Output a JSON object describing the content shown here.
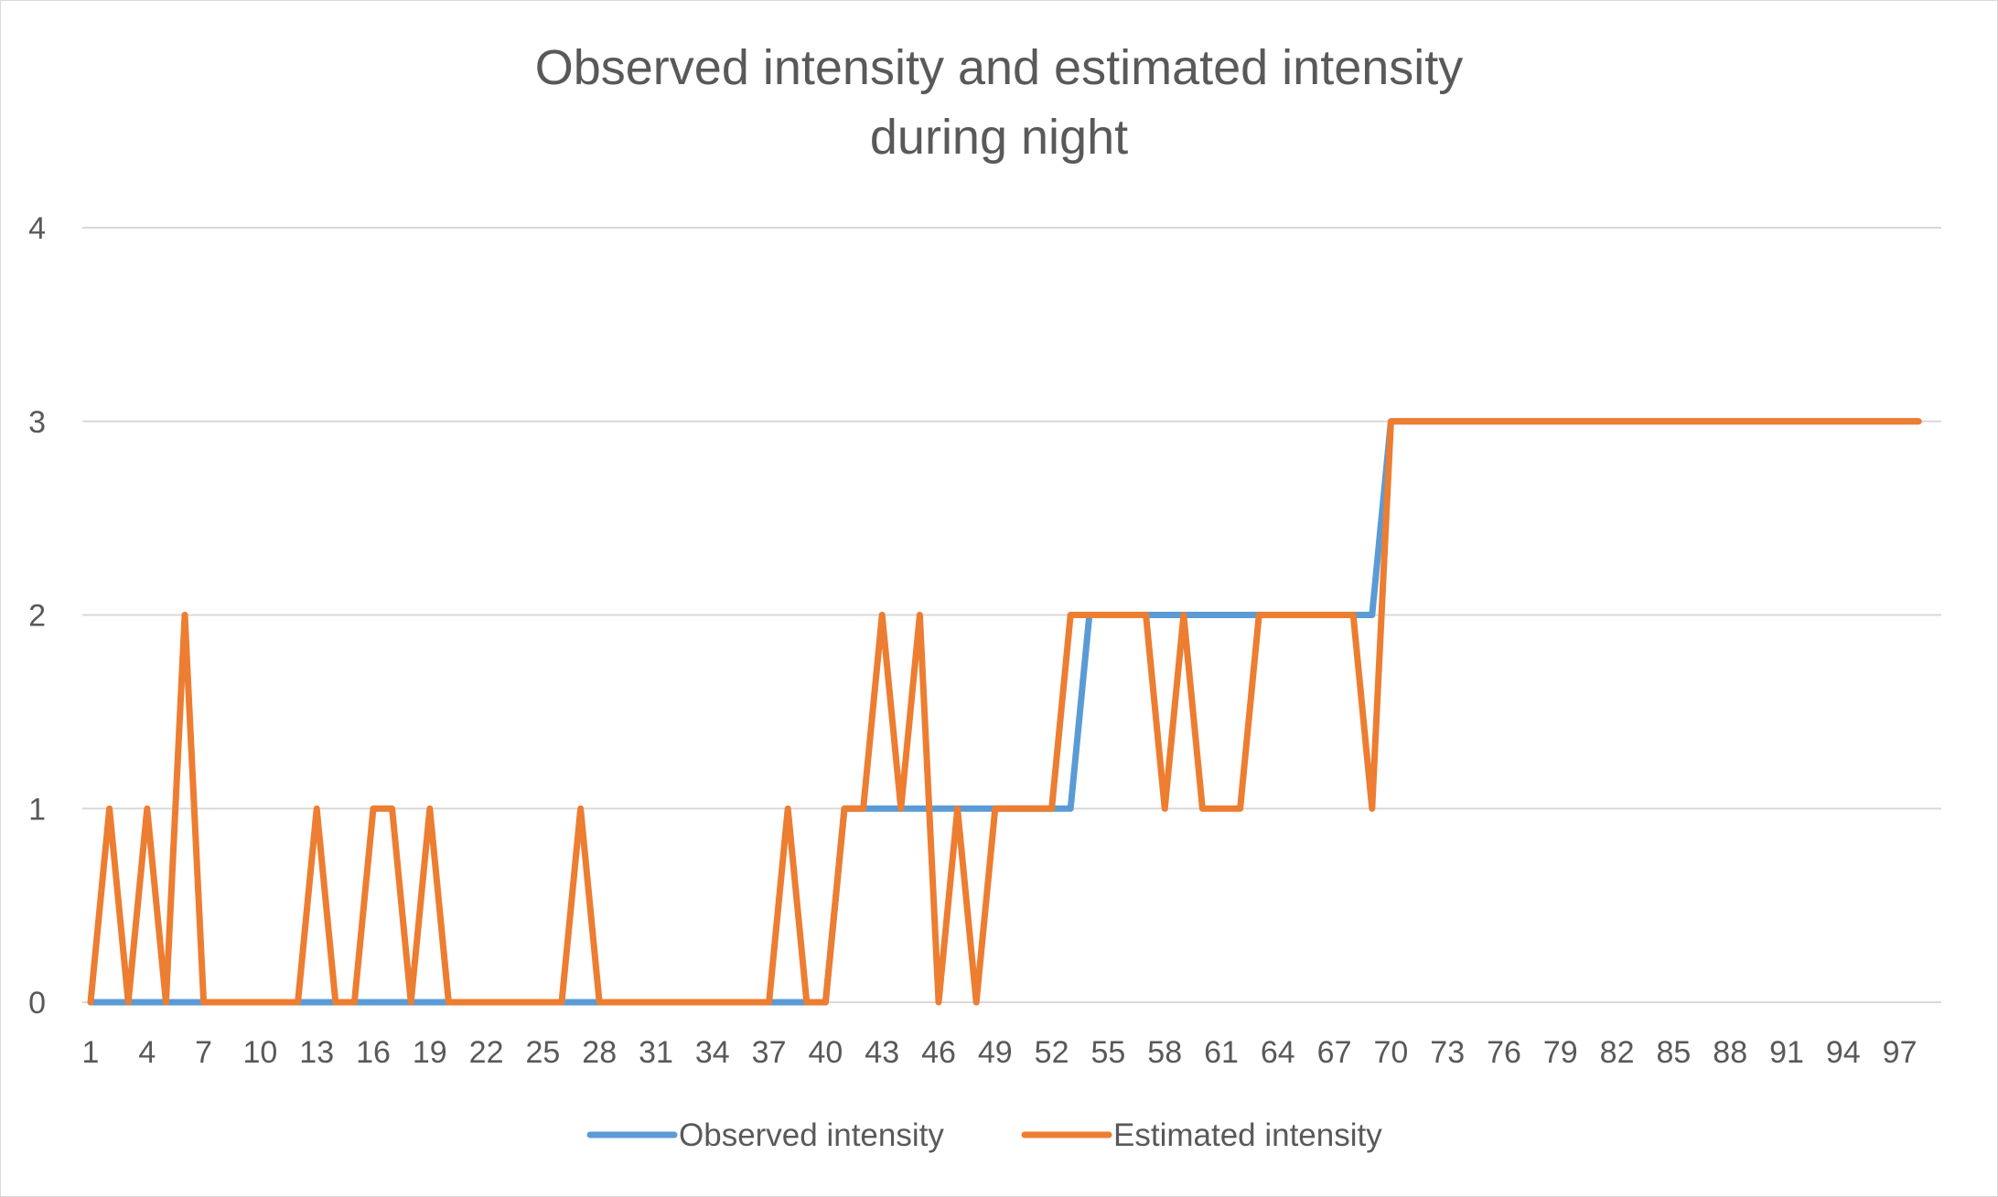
{
  "chart_data": {
    "type": "line",
    "title_lines": [
      "Observed intensity and estimated intensity",
      "during night"
    ],
    "xlabel": "",
    "ylabel": "",
    "x": [
      1,
      2,
      3,
      4,
      5,
      6,
      7,
      8,
      9,
      10,
      11,
      12,
      13,
      14,
      15,
      16,
      17,
      18,
      19,
      20,
      21,
      22,
      23,
      24,
      25,
      26,
      27,
      28,
      29,
      30,
      31,
      32,
      33,
      34,
      35,
      36,
      37,
      38,
      39,
      40,
      41,
      42,
      43,
      44,
      45,
      46,
      47,
      48,
      49,
      50,
      51,
      52,
      53,
      54,
      55,
      56,
      57,
      58,
      59,
      60,
      61,
      62,
      63,
      64,
      65,
      66,
      67,
      68,
      69,
      70,
      71,
      72,
      73,
      74,
      75,
      76,
      77,
      78,
      79,
      80,
      81,
      82,
      83,
      84,
      85,
      86,
      87,
      88,
      89,
      90,
      91,
      92,
      93,
      94,
      95,
      96,
      97,
      98
    ],
    "x_tick_labels": [
      "1",
      "4",
      "7",
      "10",
      "13",
      "16",
      "19",
      "22",
      "25",
      "28",
      "31",
      "34",
      "37",
      "40",
      "43",
      "46",
      "49",
      "52",
      "55",
      "58",
      "61",
      "64",
      "67",
      "70",
      "73",
      "76",
      "79",
      "82",
      "85",
      "88",
      "91",
      "94",
      "97"
    ],
    "ylim": [
      0,
      4
    ],
    "y_ticks": [
      0,
      1,
      2,
      3,
      4
    ],
    "grid": "horizontal",
    "legend_position": "bottom",
    "series": [
      {
        "name": "Observed intensity",
        "color": "#5b9bd5",
        "values": [
          0,
          0,
          0,
          0,
          0,
          0,
          0,
          0,
          0,
          0,
          0,
          0,
          0,
          0,
          0,
          0,
          0,
          0,
          0,
          0,
          0,
          0,
          0,
          0,
          0,
          0,
          0,
          0,
          0,
          0,
          0,
          0,
          0,
          0,
          0,
          0,
          0,
          0,
          0,
          0,
          1,
          1,
          1,
          1,
          1,
          1,
          1,
          1,
          1,
          1,
          1,
          1,
          1,
          2,
          2,
          2,
          2,
          2,
          2,
          2,
          2,
          2,
          2,
          2,
          2,
          2,
          2,
          2,
          2,
          3,
          3,
          3,
          3,
          3,
          3,
          3,
          3,
          3,
          3,
          3,
          3,
          3,
          3,
          3,
          3,
          3,
          3,
          3,
          3,
          3,
          3,
          3,
          3,
          3,
          3,
          3,
          3,
          3
        ]
      },
      {
        "name": "Estimated intensity",
        "color": "#ed7d31",
        "values": [
          0,
          1,
          0,
          1,
          0,
          2,
          0,
          0,
          0,
          0,
          0,
          0,
          1,
          0,
          0,
          1,
          1,
          0,
          1,
          0,
          0,
          0,
          0,
          0,
          0,
          0,
          1,
          0,
          0,
          0,
          0,
          0,
          0,
          0,
          0,
          0,
          0,
          1,
          0,
          0,
          1,
          1,
          2,
          1,
          2,
          0,
          1,
          0,
          1,
          1,
          1,
          1,
          2,
          2,
          2,
          2,
          2,
          1,
          2,
          1,
          1,
          1,
          2,
          2,
          2,
          2,
          2,
          2,
          1,
          3,
          3,
          3,
          3,
          3,
          3,
          3,
          3,
          3,
          3,
          3,
          3,
          3,
          3,
          3,
          3,
          3,
          3,
          3,
          3,
          3,
          3,
          3,
          3,
          3,
          3,
          3,
          3,
          3
        ]
      }
    ]
  }
}
